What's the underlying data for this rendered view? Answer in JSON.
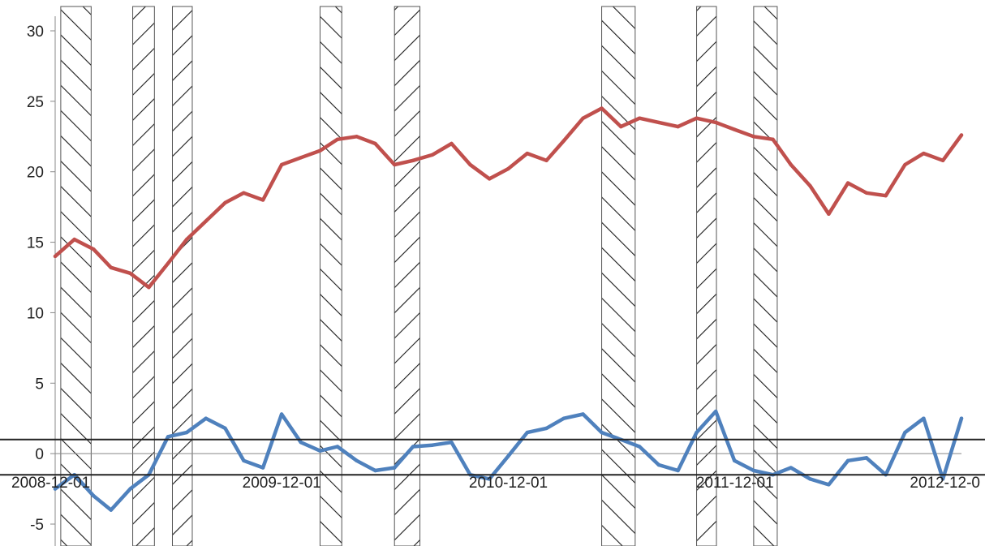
{
  "chart_data": {
    "type": "line",
    "title": "",
    "xlabel": "",
    "ylabel": "",
    "x_range": [
      "2008-12-01",
      "2012-12-01"
    ],
    "ylim": [
      -5,
      30
    ],
    "y_ticks": [
      30,
      25,
      20,
      15,
      10,
      5,
      0,
      -5
    ],
    "x_tick_labels": [
      "2008-12-01",
      "2009-12-01",
      "2010-12-01",
      "2011-12-01",
      "2012-12-0"
    ],
    "grid": false,
    "legend": "none",
    "series": [
      {
        "color": "#c0504d",
        "x": [
          "2008-12-01",
          "2009-01-01",
          "2009-02-01",
          "2009-03-01",
          "2009-04-01",
          "2009-05-01",
          "2009-06-01",
          "2009-07-01",
          "2009-08-01",
          "2009-09-01",
          "2009-10-01",
          "2009-11-01",
          "2009-12-01",
          "2010-01-01",
          "2010-02-01",
          "2010-03-01",
          "2010-04-01",
          "2010-05-01",
          "2010-06-01",
          "2010-07-01",
          "2010-08-01",
          "2010-09-01",
          "2010-10-01",
          "2010-11-01",
          "2010-12-01",
          "2011-01-01",
          "2011-02-01",
          "2011-03-01",
          "2011-04-01",
          "2011-05-01",
          "2011-06-01",
          "2011-07-01",
          "2011-08-01",
          "2011-09-01",
          "2011-10-01",
          "2011-11-01",
          "2011-12-01",
          "2012-01-01",
          "2012-02-01",
          "2012-03-01",
          "2012-04-01",
          "2012-05-01",
          "2012-06-01",
          "2012-07-01",
          "2012-08-01",
          "2012-09-01",
          "2012-10-01",
          "2012-11-01",
          "2012-12-01"
        ],
        "values": [
          14.0,
          15.2,
          14.5,
          13.2,
          12.8,
          11.8,
          13.5,
          15.2,
          16.5,
          17.8,
          18.5,
          18.0,
          20.5,
          21.0,
          21.5,
          22.3,
          22.5,
          22.0,
          20.5,
          20.8,
          21.2,
          22.0,
          20.5,
          19.5,
          20.2,
          21.3,
          20.8,
          22.2,
          23.8,
          24.5,
          23.2,
          23.8,
          23.5,
          23.2,
          23.8,
          23.5,
          23.0,
          22.5,
          22.3,
          20.5,
          19.0,
          17.0,
          19.2,
          18.5,
          18.3,
          20.5,
          21.3,
          20.8,
          22.6
        ]
      },
      {
        "color": "#4f81bd",
        "x": [
          "2008-12-01",
          "2009-01-01",
          "2009-02-01",
          "2009-03-01",
          "2009-04-01",
          "2009-05-01",
          "2009-06-01",
          "2009-07-01",
          "2009-08-01",
          "2009-09-01",
          "2009-10-01",
          "2009-11-01",
          "2009-12-01",
          "2010-01-01",
          "2010-02-01",
          "2010-03-01",
          "2010-04-01",
          "2010-05-01",
          "2010-06-01",
          "2010-07-01",
          "2010-08-01",
          "2010-09-01",
          "2010-10-01",
          "2010-11-01",
          "2010-12-01",
          "2011-01-01",
          "2011-02-01",
          "2011-03-01",
          "2011-04-01",
          "2011-05-01",
          "2011-06-01",
          "2011-07-01",
          "2011-08-01",
          "2011-09-01",
          "2011-10-01",
          "2011-11-01",
          "2011-12-01",
          "2012-01-01",
          "2012-02-01",
          "2012-03-01",
          "2012-04-01",
          "2012-05-01",
          "2012-06-01",
          "2012-07-01",
          "2012-08-01",
          "2012-09-01",
          "2012-10-01",
          "2012-11-01",
          "2012-12-01"
        ],
        "values": [
          -2.5,
          -1.5,
          -3.0,
          -4.0,
          -2.5,
          -1.5,
          1.2,
          1.5,
          2.5,
          1.8,
          -0.5,
          -1.0,
          2.8,
          0.8,
          0.2,
          0.5,
          -0.5,
          -1.2,
          -1.0,
          0.5,
          0.6,
          0.8,
          -1.5,
          -1.8,
          -0.2,
          1.5,
          1.8,
          2.5,
          2.8,
          1.5,
          1.0,
          0.5,
          -0.8,
          -1.2,
          1.5,
          3.0,
          -0.5,
          -1.2,
          -1.5,
          -1.0,
          -1.8,
          -2.2,
          -0.5,
          -0.3,
          -1.5,
          1.5,
          2.5,
          -1.8,
          2.5
        ]
      }
    ],
    "reference_lines": [
      1,
      -1.5
    ],
    "shaded_regions": [
      {
        "start": "2008-12-10",
        "end": "2009-01-28",
        "hatch": "backslash"
      },
      {
        "start": "2009-04-05",
        "end": "2009-05-10",
        "hatch": "slash"
      },
      {
        "start": "2009-06-08",
        "end": "2009-07-10",
        "hatch": "slash"
      },
      {
        "start": "2010-02-01",
        "end": "2010-03-08",
        "hatch": "backslash"
      },
      {
        "start": "2010-06-01",
        "end": "2010-07-12",
        "hatch": "slash"
      },
      {
        "start": "2011-05-01",
        "end": "2011-06-24",
        "hatch": "backslash"
      },
      {
        "start": "2011-10-01",
        "end": "2011-11-02",
        "hatch": "slash"
      },
      {
        "start": "2012-01-01",
        "end": "2012-02-08",
        "hatch": "backslash"
      }
    ]
  }
}
